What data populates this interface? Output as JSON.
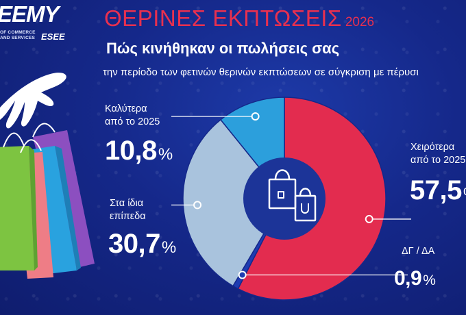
{
  "logo": {
    "main": "EEMY",
    "sub": "OF COMMERCE AND SERVICES",
    "esee": "ESEE"
  },
  "header": {
    "title": "ΘΕΡΙΝΕΣ ΕΚΠΤΩΣΕΙΣ",
    "year": "2026",
    "subtitle": "Πώς κινήθηκαν οι πωλήσεις σας",
    "description": "την περίοδο των φετινών θερινών εκπτώσεων σε σύγκριση με πέρυσι"
  },
  "icons": {
    "center": "shopping-bags-icon"
  },
  "colors": {
    "background": "#15288a",
    "accent": "#e8304f",
    "worse": "#e32c4f",
    "same": "#a9c3dd",
    "better": "#2c9fdc",
    "na": "#1f3cb2",
    "center": "#1c3498"
  },
  "chart_data": {
    "type": "pie",
    "title": "",
    "donut": true,
    "slices": [
      {
        "key": "worse",
        "label": "Χειρότερα από το 2025",
        "value": 57.5,
        "display": "57,5",
        "unit": "%"
      },
      {
        "key": "na",
        "label": "ΔΓ / ΔΑ",
        "value": 0.9,
        "display": "0,9",
        "unit": "%"
      },
      {
        "key": "same",
        "label": "Στα ίδια επίπεδα",
        "value": 30.7,
        "display": "30,7",
        "unit": "%"
      },
      {
        "key": "better",
        "label": "Καλύτερα από το 2025",
        "value": 10.8,
        "display": "10,8",
        "unit": "%"
      }
    ],
    "label_lines": {
      "better": [
        "Καλύτερα",
        "από το 2025"
      ],
      "same": [
        "Στα ίδια",
        "επίπεδα"
      ],
      "worse": [
        "Χειρότερα",
        "από το 2025"
      ],
      "na": [
        "ΔΓ / ΔΑ"
      ]
    }
  }
}
